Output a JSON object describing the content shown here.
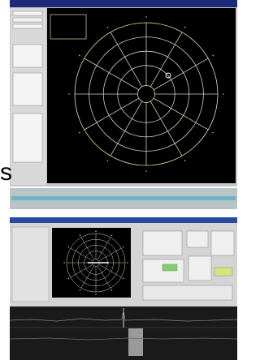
{
  "fragment_text": "s"
}
